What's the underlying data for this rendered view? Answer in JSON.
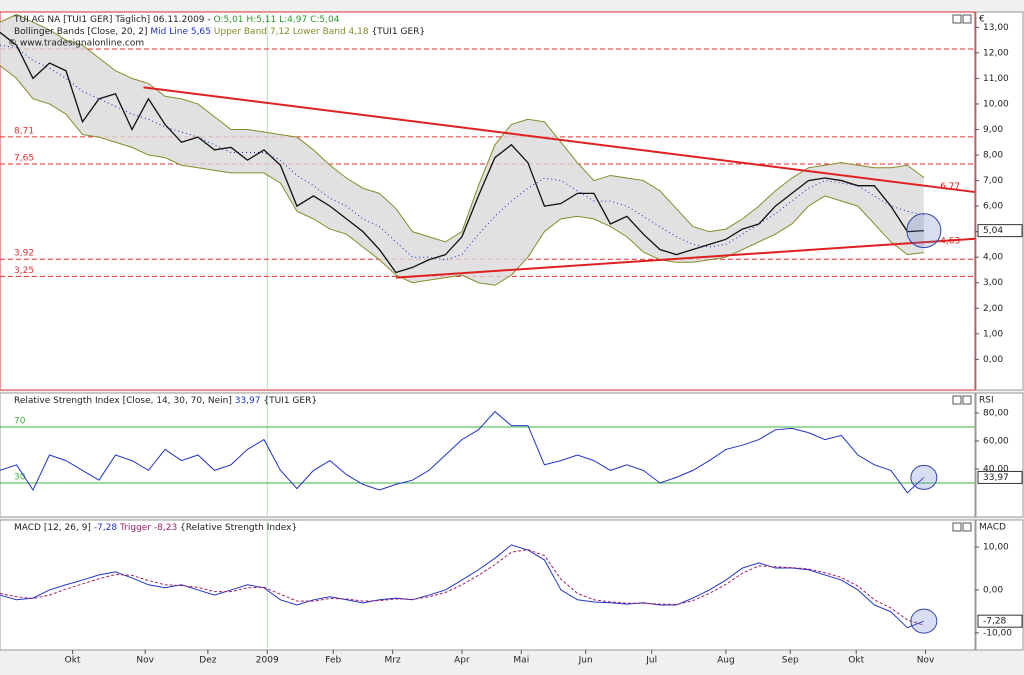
{
  "chart_data": [
    {
      "type": "bollinger",
      "header": "TUI AG NA [TUI1 GER] Täglich] 06.11.2009 -",
      "ohlc": [
        "O:5,01",
        "H:5,11",
        "L:4,97",
        "C:5,04"
      ],
      "subheader": "Bollinger Bands [Close, 20, 2]",
      "legend_labels": [
        "Mid Line 5,65",
        "Upper Band 7,12 Lower Band 4,18"
      ],
      "source_tag": "{TUI1 GER}",
      "copyright": "© www.tradesignalonline.com",
      "axis_unit": "€",
      "x": [
        0,
        1,
        2,
        3,
        4,
        5,
        6,
        7,
        8,
        9,
        10,
        11,
        12,
        13,
        14,
        15,
        16,
        17,
        18,
        19,
        20,
        21,
        22,
        23,
        24,
        25,
        26,
        27,
        28,
        29,
        30,
        31,
        32,
        33,
        34,
        35,
        36,
        37,
        38,
        39,
        40,
        41,
        42,
        43,
        44,
        45,
        46,
        47,
        48,
        49,
        50,
        51,
        52,
        53,
        54,
        55,
        56
      ],
      "xlim": [
        0,
        59.1
      ],
      "ylim": [
        -1.2,
        13.6
      ],
      "yticks": [
        {
          "value": 0,
          "label": "0,00"
        },
        {
          "value": 1,
          "label": "1,00"
        },
        {
          "value": 2,
          "label": "2,00"
        },
        {
          "value": 3,
          "label": "3,00"
        },
        {
          "value": 4,
          "label": "4,00"
        },
        {
          "value": 5,
          "label": "5,00"
        },
        {
          "value": 6,
          "label": "6,00"
        },
        {
          "value": 7,
          "label": "7,00"
        },
        {
          "value": 8,
          "label": "8,00"
        },
        {
          "value": 9,
          "label": "9,00"
        },
        {
          "value": 10,
          "label": "10,00"
        },
        {
          "value": 11,
          "label": "11,00"
        },
        {
          "value": 12,
          "label": "12,00"
        },
        {
          "value": 13,
          "label": "13,00"
        }
      ],
      "series": [
        {
          "name": "Close",
          "color": "#111111",
          "values": [
            12.8,
            12.3,
            11.0,
            11.6,
            11.3,
            9.3,
            10.2,
            10.4,
            9.0,
            10.2,
            9.2,
            8.5,
            8.7,
            8.2,
            8.3,
            7.8,
            8.2,
            7.6,
            6.0,
            6.4,
            6.0,
            5.5,
            5.0,
            4.3,
            3.4,
            3.6,
            3.9,
            4.1,
            4.8,
            6.4,
            7.9,
            8.4,
            7.7,
            6.0,
            6.1,
            6.5,
            6.5,
            5.3,
            5.6,
            4.9,
            4.3,
            4.1,
            4.3,
            4.5,
            4.7,
            5.1,
            5.3,
            6.0,
            6.5,
            7.0,
            7.1,
            7.0,
            6.8,
            6.8,
            6.0,
            5.0,
            5.04
          ]
        },
        {
          "name": "Upper Band",
          "color": "#8a8a2a",
          "values": [
            13.2,
            13.5,
            13.2,
            12.9,
            12.5,
            12.3,
            11.8,
            11.3,
            11.0,
            10.8,
            10.3,
            10.2,
            10.0,
            9.5,
            9.0,
            9.0,
            8.9,
            8.8,
            8.7,
            8.2,
            7.6,
            7.1,
            6.7,
            6.5,
            5.9,
            5.0,
            4.8,
            4.6,
            5.0,
            6.8,
            8.4,
            9.2,
            9.4,
            9.3,
            8.5,
            7.7,
            7.0,
            7.2,
            7.1,
            7.0,
            6.6,
            5.9,
            5.2,
            5.0,
            5.1,
            5.5,
            6.0,
            6.6,
            7.1,
            7.5,
            7.6,
            7.7,
            7.6,
            7.5,
            7.5,
            7.6,
            7.12
          ]
        },
        {
          "name": "Mid Line",
          "color": "#2222cc",
          "values": [
            12.3,
            12.2,
            11.7,
            11.4,
            11.0,
            10.5,
            10.2,
            9.9,
            9.6,
            9.4,
            9.1,
            8.9,
            8.7,
            8.4,
            8.1,
            8.1,
            8.1,
            7.8,
            7.2,
            6.8,
            6.3,
            6.0,
            5.5,
            5.2,
            4.6,
            4.0,
            4.0,
            3.9,
            4.1,
            4.9,
            5.6,
            6.2,
            6.7,
            7.1,
            7.0,
            6.6,
            6.2,
            6.2,
            6.0,
            5.6,
            5.2,
            4.8,
            4.5,
            4.4,
            4.5,
            4.9,
            5.3,
            5.7,
            6.2,
            6.7,
            7.0,
            6.9,
            6.8,
            6.4,
            6.0,
            5.8,
            5.65
          ]
        },
        {
          "name": "Lower Band",
          "color": "#8a8a2a",
          "values": [
            11.5,
            11.0,
            10.2,
            10.0,
            9.6,
            8.8,
            8.7,
            8.5,
            8.3,
            8.0,
            7.9,
            7.6,
            7.5,
            7.4,
            7.3,
            7.3,
            7.3,
            6.9,
            5.8,
            5.5,
            5.1,
            4.9,
            4.4,
            3.9,
            3.3,
            3.0,
            3.1,
            3.2,
            3.3,
            3.0,
            2.9,
            3.3,
            4.0,
            5.0,
            5.5,
            5.6,
            5.5,
            5.2,
            4.8,
            4.2,
            3.9,
            3.8,
            3.8,
            3.9,
            4.0,
            4.3,
            4.6,
            4.9,
            5.3,
            6.0,
            6.4,
            6.2,
            6.0,
            5.3,
            4.6,
            4.1,
            4.18
          ]
        }
      ],
      "band_color": "#d9d9d9",
      "levels": [
        {
          "value": 12.15
        },
        {
          "value": 8.71,
          "label": "8,71"
        },
        {
          "value": 7.65,
          "label": "7,65"
        },
        {
          "value": 3.92,
          "label": "3,92"
        },
        {
          "value": 3.25,
          "label": "3,25"
        }
      ],
      "level_color": "#e03030",
      "trendlines": [
        {
          "x": [
            8.7,
            59.1
          ],
          "y": [
            10.65,
            6.55
          ]
        },
        {
          "x": [
            24,
            59.1
          ],
          "y": [
            3.2,
            4.72
          ]
        }
      ],
      "trend_color": "#e02020",
      "annotations": [
        {
          "x": 56.5,
          "y": 6.77,
          "label": "6,77"
        },
        {
          "x": 56.5,
          "y": 4.63,
          "label": "4,63"
        }
      ],
      "last_value": {
        "value": 5.04,
        "label": "5,04"
      }
    },
    {
      "type": "line",
      "header": "Relative Strength Index [Close, 14, 30, 70, Nein]",
      "legend_labels": [
        "33,97"
      ],
      "source_tag": "{TUI1 GER}",
      "axis_unit": "RSI",
      "x": [
        0,
        1,
        2,
        3,
        4,
        5,
        6,
        7,
        8,
        9,
        10,
        11,
        12,
        13,
        14,
        15,
        16,
        17,
        18,
        19,
        20,
        21,
        22,
        23,
        24,
        25,
        26,
        27,
        28,
        29,
        30,
        31,
        32,
        33,
        34,
        35,
        36,
        37,
        38,
        39,
        40,
        41,
        42,
        43,
        44,
        45,
        46,
        47,
        48,
        49,
        50,
        51,
        52,
        53,
        54,
        55,
        56
      ],
      "xlim": [
        0,
        59.1
      ],
      "ylim": [
        5.7,
        94.3
      ],
      "yticks": [
        {
          "value": 40,
          "label": "40,00"
        },
        {
          "value": 60,
          "label": "60,00"
        },
        {
          "value": 80,
          "label": "80,00"
        }
      ],
      "series": [
        {
          "name": "RSI",
          "color": "#2233cc",
          "values": [
            39,
            43,
            25,
            50,
            46,
            39,
            32,
            50,
            46,
            39,
            54,
            46,
            50,
            39,
            43,
            54,
            61,
            39,
            26,
            39,
            46,
            36,
            29,
            25,
            29,
            32,
            39,
            50,
            61,
            68,
            81,
            71,
            71,
            43,
            46,
            50,
            46,
            39,
            43,
            39,
            30,
            34,
            39,
            46,
            54,
            57,
            61,
            68,
            69,
            66,
            61,
            64,
            50,
            43,
            39,
            23,
            33.97
          ]
        }
      ],
      "levels": [
        {
          "value": 70,
          "label": "70"
        },
        {
          "value": 30,
          "label": "30"
        }
      ],
      "level_color": "#3cb43c",
      "last_value": {
        "value": 33.97,
        "label": "33,97"
      }
    },
    {
      "type": "line",
      "header": "MACD [12, 26, 9]",
      "legend_labels": [
        "-7,28",
        "Trigger -8,23"
      ],
      "source_tag": "{Relative Strength Index}",
      "axis_unit": "MACD",
      "x": [
        0,
        1,
        2,
        3,
        4,
        5,
        6,
        7,
        8,
        9,
        10,
        11,
        12,
        13,
        14,
        15,
        16,
        17,
        18,
        19,
        20,
        21,
        22,
        23,
        24,
        25,
        26,
        27,
        28,
        29,
        30,
        31,
        32,
        33,
        34,
        35,
        36,
        37,
        38,
        39,
        40,
        41,
        42,
        43,
        44,
        45,
        46,
        47,
        48,
        49,
        50,
        51,
        52,
        53,
        54,
        55,
        56
      ],
      "xlim": [
        0,
        59.1
      ],
      "ylim": [
        -14,
        16.3
      ],
      "yticks": [
        {
          "value": -10,
          "label": "-10,00"
        },
        {
          "value": 0,
          "label": "0,00"
        },
        {
          "value": 10,
          "label": "10,00"
        }
      ],
      "xticks": [
        {
          "value": 4.4,
          "label": "Okt"
        },
        {
          "value": 8.8,
          "label": "Nov"
        },
        {
          "value": 12.6,
          "label": "Dez"
        },
        {
          "value": 16.2,
          "label": "2009"
        },
        {
          "value": 20.2,
          "label": "Feb"
        },
        {
          "value": 23.8,
          "label": "Mrz"
        },
        {
          "value": 28,
          "label": "Apr"
        },
        {
          "value": 31.6,
          "label": "Mai"
        },
        {
          "value": 35.5,
          "label": "Jun"
        },
        {
          "value": 39.5,
          "label": "Jul"
        },
        {
          "value": 44,
          "label": "Aug"
        },
        {
          "value": 47.9,
          "label": "Sep"
        },
        {
          "value": 51.9,
          "label": "Okt"
        },
        {
          "value": 56.1,
          "label": "Nov"
        }
      ],
      "series": [
        {
          "name": "MACD",
          "color": "#2233cc",
          "values": [
            -1.2,
            -2.3,
            -1.9,
            0,
            1.2,
            2.3,
            3.5,
            4.2,
            2.8,
            1.2,
            0.5,
            1.2,
            0,
            -1.2,
            0,
            1.2,
            0.5,
            -2.3,
            -3.5,
            -2.3,
            -1.6,
            -2.3,
            -3.0,
            -2.3,
            -1.9,
            -2.3,
            -1.2,
            0,
            2.3,
            4.7,
            7.4,
            10.5,
            9.3,
            7,
            0,
            -2.3,
            -2.8,
            -3.0,
            -3.3,
            -3.0,
            -3.5,
            -3.5,
            -1.9,
            0,
            2.3,
            5.1,
            6.3,
            5.1,
            5.1,
            4.7,
            3.5,
            2.3,
            0,
            -3.5,
            -5.1,
            -8.8,
            -7.28
          ]
        },
        {
          "name": "Trigger",
          "color": "#a0206a",
          "dashed": true,
          "values": [
            -0.8,
            -1.6,
            -2.0,
            -1.2,
            0.2,
            1.4,
            2.6,
            3.6,
            3.4,
            2.2,
            1.2,
            1.0,
            0.6,
            -0.4,
            -0.4,
            0.5,
            0.6,
            -1.0,
            -2.6,
            -2.6,
            -2.0,
            -2.1,
            -2.6,
            -2.5,
            -2.1,
            -2.2,
            -1.6,
            -0.6,
            1.2,
            3.4,
            5.9,
            8.8,
            9.4,
            8.0,
            2.5,
            -0.8,
            -2.3,
            -2.8,
            -3.1,
            -3.1,
            -3.3,
            -3.4,
            -2.5,
            -0.8,
            1.3,
            3.9,
            5.6,
            5.4,
            5.2,
            4.9,
            4.0,
            2.9,
            0.9,
            -2.3,
            -4.2,
            -7.0,
            -8.23
          ]
        }
      ],
      "last_value": {
        "value": -7.28,
        "label": "-7,28"
      }
    }
  ]
}
